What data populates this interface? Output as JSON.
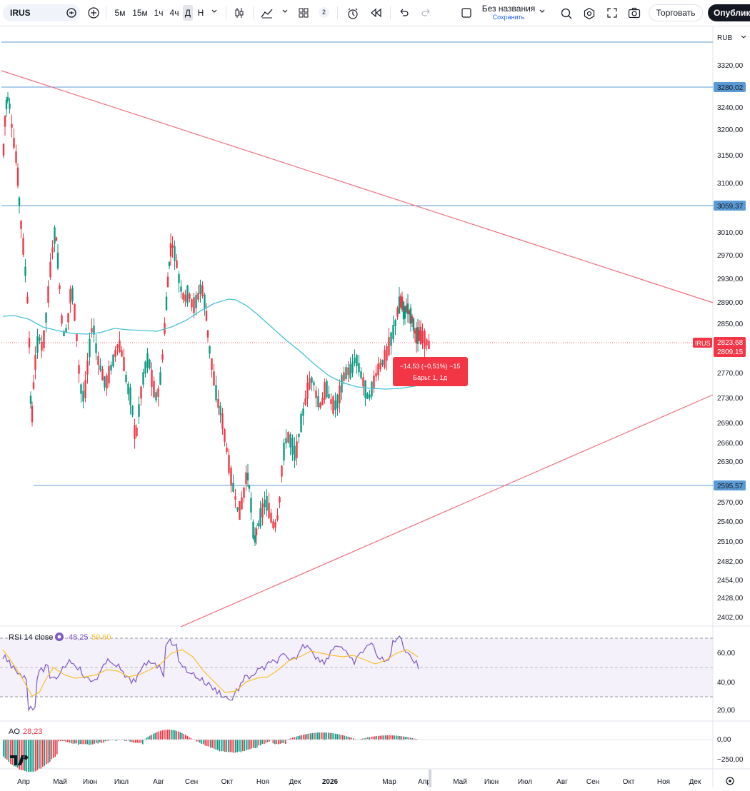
{
  "toolbar": {
    "symbol": "IRUS",
    "timeframes": [
      "5м",
      "15м",
      "1ч",
      "4ч",
      "Д",
      "Н"
    ],
    "active_timeframe": "Д",
    "layouts_badge": "2",
    "layout_title": "Без названия",
    "layout_save": "Сохранить",
    "trade_label": "Торговать",
    "publish_label": "Опублико"
  },
  "price_axis": {
    "currency": "RUB",
    "ticks": [
      "3320,00",
      "3240,00",
      "3200,00",
      "3150,00",
      "3100,00",
      "3010,00",
      "2970,00",
      "2930,00",
      "2890,00",
      "2850,00",
      "2770,00",
      "2730,00",
      "2690,00",
      "2660,00",
      "2630,00",
      "2570,00",
      "2540,00",
      "2510,00",
      "2482,00",
      "2454,00",
      "2428,00",
      "2402,00"
    ],
    "level_labels": [
      "3280,02",
      "3059,37",
      "2595,57"
    ],
    "symbol_tag": "IRUS",
    "last_price": "2823,68",
    "prev_price": "2809,15"
  },
  "measure": {
    "change": "−14,53 (−0,51%) −15",
    "bars": "Бары: 1, 1д"
  },
  "rsi": {
    "label": "RSI 14 close",
    "value": "48,25",
    "ma_value": "59,60",
    "ticks": [
      "60,00",
      "40,00",
      "20,00"
    ]
  },
  "ao": {
    "label": "AO",
    "value": "28,23",
    "ticks": [
      "0,00",
      "−250,00"
    ]
  },
  "time_axis": [
    "Апр",
    "Май",
    "Июн",
    "Июл",
    "Авг",
    "Сен",
    "Окт",
    "Ноя",
    "Дек",
    "2026",
    "Мар",
    "Апр",
    "Май",
    "Июн",
    "Июл",
    "Авг",
    "Сен",
    "Окт",
    "Ноя",
    "Дек"
  ],
  "colors": {
    "up": "#089981",
    "down": "#f23645",
    "level": "#5b9bd5",
    "trend": "#f07080",
    "ma": "#45c2d6",
    "rsi_line": "#7e57c2",
    "rsi_ma": "#fbc02d",
    "rsi_band": "#ede7f6"
  },
  "icons": [
    "plus-circle-icon",
    "candles-icon",
    "indicators-icon",
    "layouts-icon",
    "alert-icon",
    "replay-icon",
    "undo-icon",
    "redo-icon",
    "search-icon",
    "settings-icon",
    "fullscreen-icon",
    "camera-icon",
    "gear-icon",
    "tradingview-logo"
  ]
}
